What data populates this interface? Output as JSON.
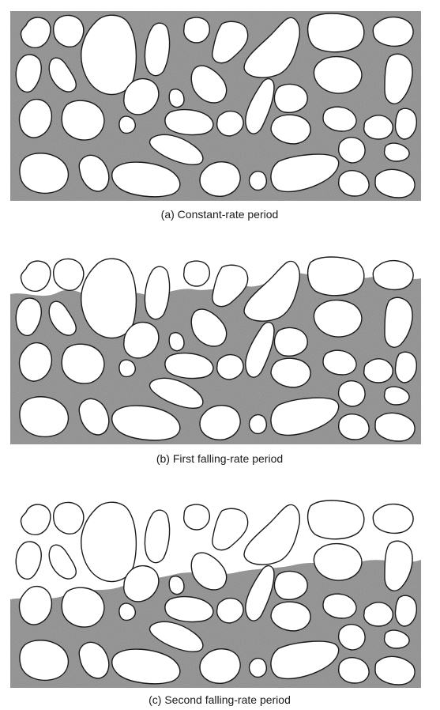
{
  "panels": [
    {
      "caption": "(a) Constant-rate period"
    },
    {
      "caption": "(b) First falling-rate period"
    },
    {
      "caption": "(c) Second falling-rate period"
    }
  ],
  "colors": {
    "liquid": "#8a8a8a",
    "grain_fill": "#ffffff",
    "outline": "#1a1a1a"
  }
}
